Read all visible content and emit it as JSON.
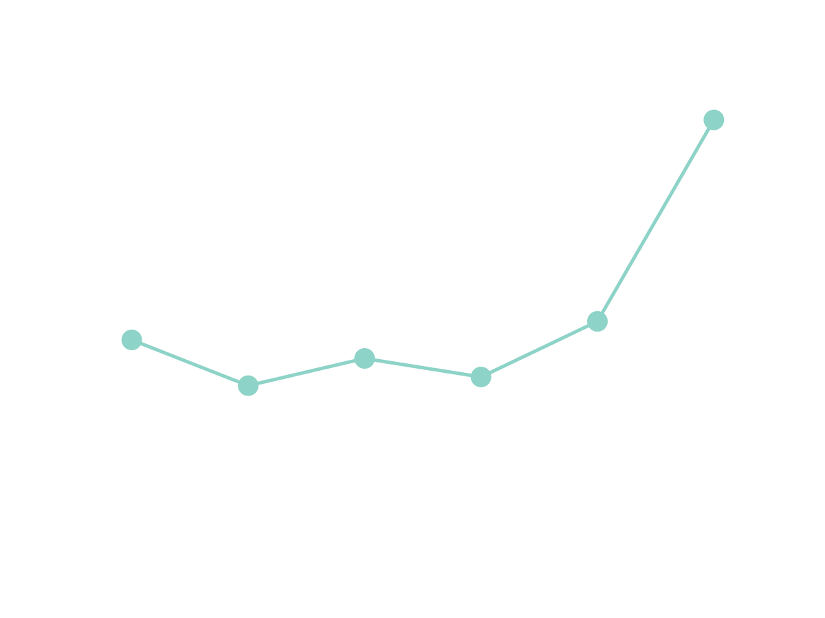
{
  "chart_data": {
    "type": "line",
    "categories": [
      null,
      null,
      null,
      null,
      null,
      null
    ],
    "series": [
      {
        "color": "#8dd3c7",
        "values": [
          45,
          37.6,
          42,
          39,
          48,
          80.6
        ]
      }
    ],
    "ylim": [
      0,
      100
    ]
  }
}
